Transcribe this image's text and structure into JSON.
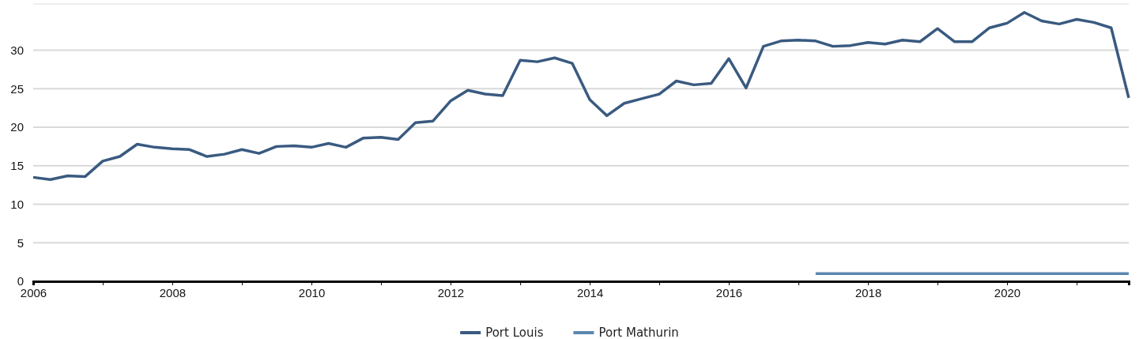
{
  "chart_data": {
    "type": "line",
    "x": [
      "2006-01",
      "2006-04",
      "2006-07",
      "2006-10",
      "2007-01",
      "2007-04",
      "2007-07",
      "2007-10",
      "2008-01",
      "2008-04",
      "2008-07",
      "2008-10",
      "2009-01",
      "2009-04",
      "2009-07",
      "2009-10",
      "2010-01",
      "2010-04",
      "2010-07",
      "2010-10",
      "2011-01",
      "2011-04",
      "2011-07",
      "2011-10",
      "2012-01",
      "2012-04",
      "2012-07",
      "2012-10",
      "2013-01",
      "2013-04",
      "2013-07",
      "2013-10",
      "2014-01",
      "2014-04",
      "2014-07",
      "2014-10",
      "2015-01",
      "2015-04",
      "2015-07",
      "2015-10",
      "2016-01",
      "2016-04",
      "2016-07",
      "2016-10",
      "2017-01",
      "2017-04",
      "2017-07",
      "2017-10",
      "2018-01",
      "2018-04",
      "2018-07",
      "2018-10",
      "2019-01",
      "2019-04",
      "2019-07",
      "2019-10",
      "2020-01",
      "2020-04",
      "2020-07",
      "2020-10",
      "2021-01",
      "2021-04",
      "2021-07",
      "2021-10"
    ],
    "series": [
      {
        "name": "Port Louis",
        "color": "#3a5a80",
        "values": [
          13.5,
          13.2,
          13.7,
          13.6,
          15.6,
          16.2,
          17.8,
          17.4,
          17.2,
          17.1,
          16.2,
          16.5,
          17.1,
          16.6,
          17.5,
          17.6,
          17.4,
          17.9,
          17.4,
          18.6,
          18.7,
          18.4,
          20.6,
          20.8,
          23.4,
          24.8,
          24.3,
          24.1,
          28.7,
          28.5,
          29.0,
          28.3,
          23.6,
          21.5,
          23.1,
          23.7,
          24.3,
          26.0,
          25.5,
          25.7,
          28.9,
          25.1,
          30.5,
          31.2,
          31.3,
          31.2,
          30.5,
          30.6,
          31.0,
          30.8,
          31.3,
          31.1,
          32.8,
          31.1,
          31.1,
          32.9,
          33.5,
          34.9,
          33.8,
          33.4,
          34.0,
          33.6,
          32.9,
          23.8
        ]
      },
      {
        "name": "Port Mathurin",
        "color": "#5b87b0",
        "x": [
          "2017-04",
          "2017-07",
          "2017-10",
          "2018-01",
          "2018-04",
          "2018-07",
          "2018-10",
          "2019-01",
          "2019-04",
          "2019-07",
          "2019-10",
          "2020-01",
          "2020-04",
          "2020-07",
          "2020-10",
          "2021-01",
          "2021-04",
          "2021-07",
          "2021-10"
        ],
        "values": [
          1,
          1,
          1,
          1,
          1,
          1,
          1,
          1,
          1,
          1,
          1,
          1,
          1,
          1,
          1,
          1,
          1,
          1,
          1
        ]
      }
    ],
    "xlim": [
      "2006-01",
      "2021-10"
    ],
    "xticks": [
      {
        "value": "2006",
        "label": "2006"
      },
      {
        "value": "2007",
        "label": null
      },
      {
        "value": "2008",
        "label": "2008"
      },
      {
        "value": "2009",
        "label": null
      },
      {
        "value": "2010",
        "label": "2010"
      },
      {
        "value": "2011",
        "label": null
      },
      {
        "value": "2012",
        "label": "2012"
      },
      {
        "value": "2013",
        "label": null
      },
      {
        "value": "2014",
        "label": "2014"
      },
      {
        "value": "2015",
        "label": null
      },
      {
        "value": "2016",
        "label": "2016"
      },
      {
        "value": "2017",
        "label": null
      },
      {
        "value": "2018",
        "label": "2018"
      },
      {
        "value": "2019",
        "label": null
      },
      {
        "value": "2020",
        "label": "2020"
      },
      {
        "value": "2021",
        "label": null
      }
    ],
    "ylim": [
      0,
      36
    ],
    "yticks": [
      0,
      5,
      10,
      15,
      20,
      25,
      30
    ],
    "grid": "y",
    "legend": "bottom",
    "marker": "none",
    "line_style": "solid"
  }
}
